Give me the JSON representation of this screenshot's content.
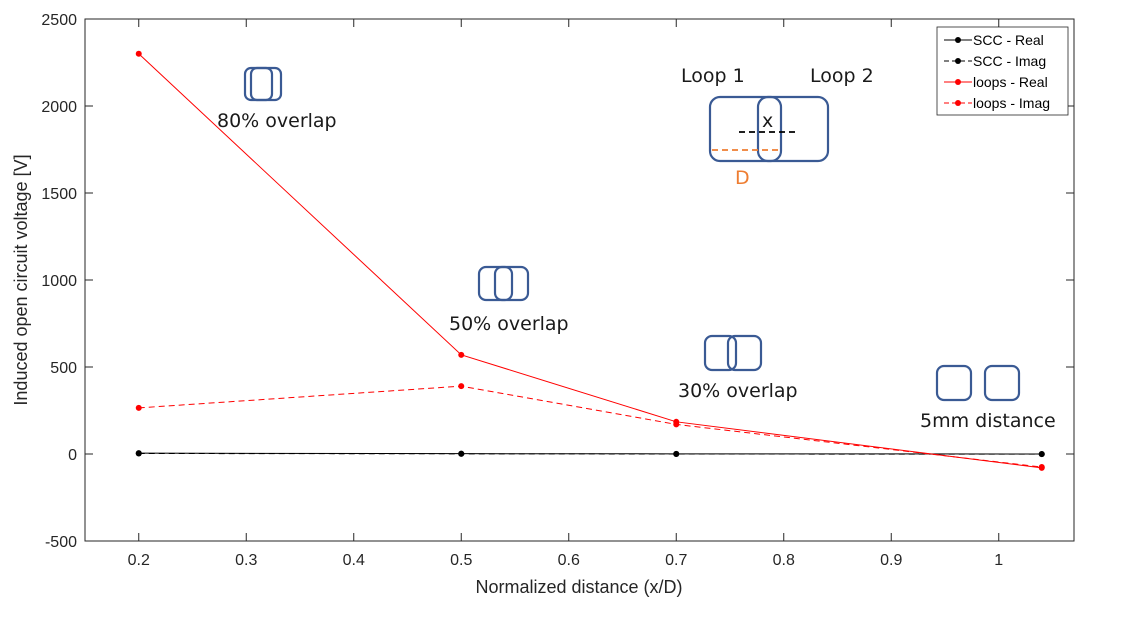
{
  "chart_data": {
    "type": "line",
    "title": "",
    "xlabel": "Normalized distance (x/D)",
    "ylabel": "Induced open circuit voltage [V]",
    "xlim": [
      0.15,
      1.07
    ],
    "ylim": [
      -500,
      2500
    ],
    "xticks": [
      0.2,
      0.3,
      0.4,
      0.5,
      0.6,
      0.7,
      0.8,
      0.9,
      1
    ],
    "xtick_labels": [
      "0.2",
      "0.3",
      "0.4",
      "0.5",
      "0.6",
      "0.7",
      "0.8",
      "0.9",
      "1"
    ],
    "yticks": [
      -500,
      0,
      500,
      1000,
      1500,
      2000,
      2500
    ],
    "ytick_labels": [
      "-500",
      "0",
      "500",
      "1000",
      "1500",
      "2000",
      "2500"
    ],
    "legend_position": "top-right",
    "series": [
      {
        "name": "SCC - Real",
        "color": "#000000",
        "dashed": false,
        "x": [
          0.2,
          0.5,
          0.7,
          1.04
        ],
        "values": [
          5,
          2,
          1,
          0
        ]
      },
      {
        "name": "SCC - Imag",
        "color": "#000000",
        "dashed": true,
        "x": [
          0.2,
          0.5,
          0.7,
          1.04
        ],
        "values": [
          3,
          1,
          0,
          -1
        ]
      },
      {
        "name": "loops - Real",
        "color": "#ff0000",
        "dashed": false,
        "x": [
          0.2,
          0.5,
          0.7,
          1.04
        ],
        "values": [
          2300,
          570,
          185,
          -80
        ]
      },
      {
        "name": "loops - Imag",
        "color": "#ff0000",
        "dashed": true,
        "x": [
          0.2,
          0.5,
          0.7,
          1.04
        ],
        "values": [
          265,
          390,
          170,
          -75
        ]
      }
    ],
    "annotations": {
      "overlap80": "80% overlap",
      "overlap50": "50% overlap",
      "overlap30": "30% overlap",
      "distance5": "5mm distance",
      "loop1": "Loop 1",
      "loop2": "Loop 2",
      "x_symbol": "x",
      "d_symbol": "D",
      "d_color": "#ee7d31",
      "loop_color": "#3a5a94"
    }
  }
}
